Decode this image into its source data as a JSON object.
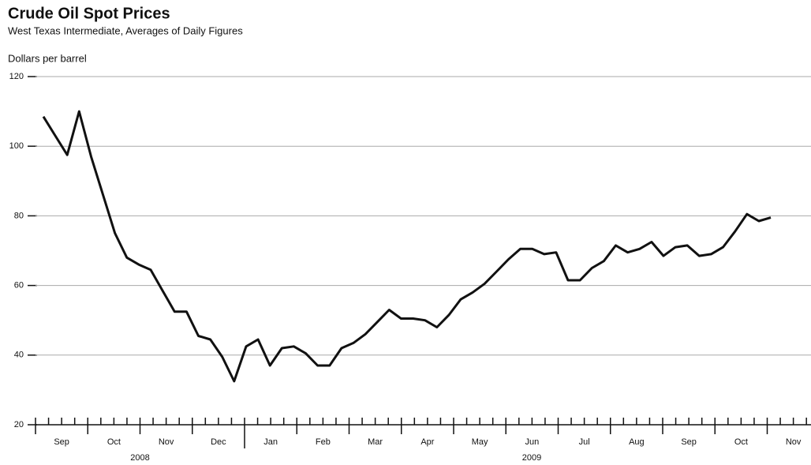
{
  "chart_data": {
    "type": "line",
    "title": "Crude Oil Spot Prices",
    "subtitle": "West Texas Intermediate, Averages of Daily Figures",
    "y_label": "Dollars per barrel",
    "years": [
      {
        "label": "2008",
        "months": [
          "Sep",
          "Oct",
          "Nov",
          "Dec"
        ]
      },
      {
        "label": "2009",
        "months": [
          "Jan",
          "Feb",
          "Mar",
          "Apr",
          "May",
          "Jun",
          "Jul",
          "Aug",
          "Sep",
          "Oct",
          "Nov"
        ]
      }
    ],
    "values": [
      108.5,
      103,
      97.5,
      110,
      97,
      86,
      75,
      68,
      66,
      64.5,
      58.5,
      52.5,
      52.5,
      45.5,
      44.5,
      39.5,
      32.5,
      42.5,
      44.5,
      37,
      42,
      42.5,
      40.5,
      37,
      37,
      42,
      43.5,
      46,
      49.5,
      53,
      50.5,
      50.5,
      50,
      48,
      51.5,
      56,
      58,
      60.5,
      64,
      67.5,
      70.5,
      70.5,
      69,
      69.5,
      61.5,
      61.5,
      65,
      67,
      71.5,
      69.5,
      70.5,
      72.5,
      68.5,
      71,
      71.5,
      68.5,
      69,
      71,
      75.5,
      80.5,
      78.5,
      79.5
    ],
    "color": "#111111",
    "ylim": [
      20,
      120
    ],
    "yticks": [
      20,
      40,
      60,
      80,
      100,
      120
    ],
    "grid": true
  }
}
